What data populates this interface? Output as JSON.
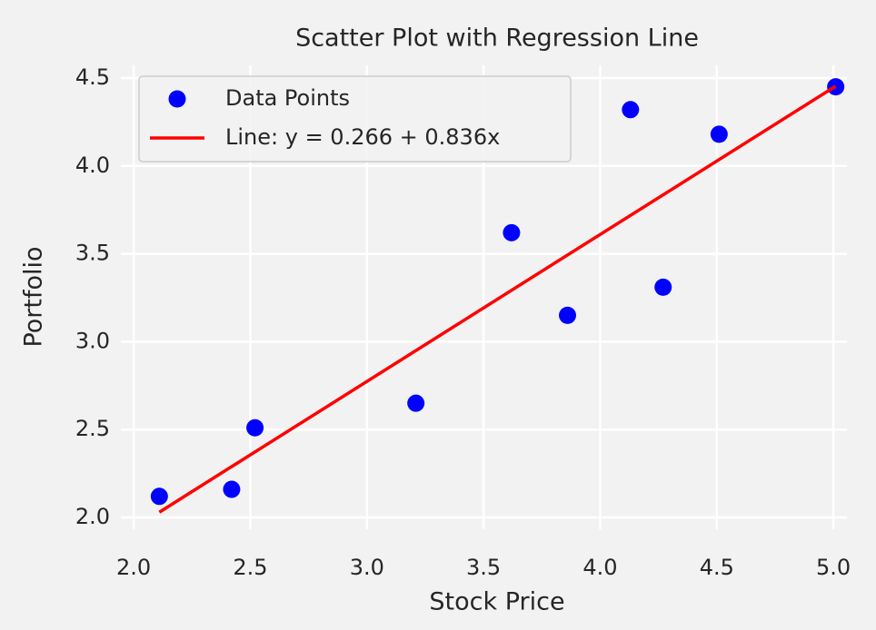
{
  "chart_data": {
    "type": "scatter",
    "title": "Scatter Plot with Regression Line",
    "xlabel": "Stock Price",
    "ylabel": "Portfolio",
    "xlim": [
      1.945,
      5.058
    ],
    "ylim": [
      1.933,
      4.572
    ],
    "xticks": [
      {
        "value": 2,
        "label": "2.0"
      },
      2.5,
      {
        "value": 3,
        "label": "3.0"
      },
      3.5,
      {
        "value": 4,
        "label": "4.0"
      },
      4.5,
      {
        "value": 5,
        "label": "5.0"
      }
    ],
    "yticks": [
      {
        "value": 2,
        "label": "2.0"
      },
      2.5,
      {
        "value": 3,
        "label": "3.0"
      },
      3.5,
      {
        "value": 4,
        "label": "4.0"
      },
      4.5
    ],
    "grid": true,
    "legend": "upper left",
    "series": [
      {
        "name": "Data Points",
        "type": "scatter",
        "color": "#0000ff",
        "x": [
          2.11,
          2.42,
          2.52,
          3.21,
          3.62,
          3.86,
          4.13,
          4.27,
          4.51,
          5.01
        ],
        "values": [
          2.12,
          2.16,
          2.51,
          2.65,
          3.62,
          3.15,
          4.32,
          3.31,
          4.18,
          4.45
        ]
      },
      {
        "name": "Line: y = 0.266 + 0.836x",
        "type": "line",
        "color": "#ff0000",
        "x": [
          2.11,
          5.01
        ],
        "values": [
          2.03,
          4.454
        ]
      }
    ]
  }
}
